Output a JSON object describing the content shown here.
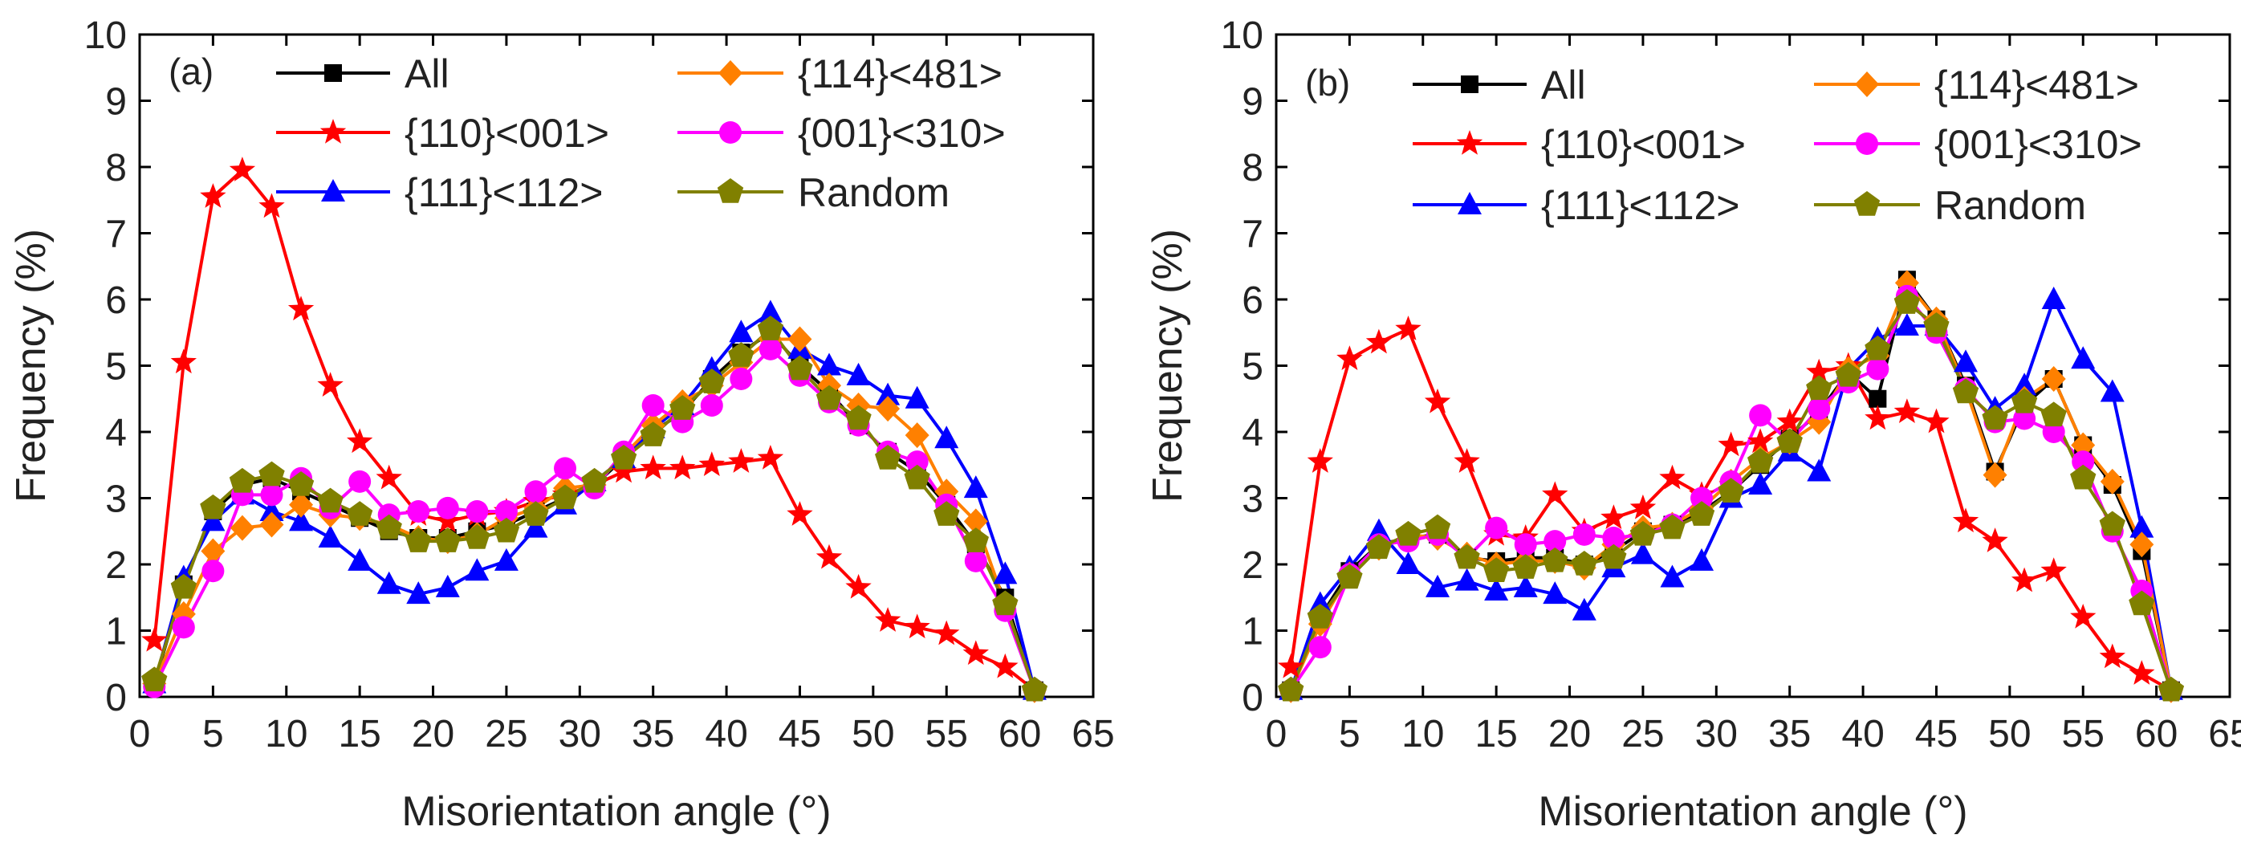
{
  "chart_data": [
    {
      "type": "line",
      "panel_label": "(a)",
      "xlabel": "Misorientation angle (°)",
      "ylabel": "Frequency (%)",
      "xlim": [
        0,
        65
      ],
      "ylim": [
        0,
        10
      ],
      "xticks": [
        0,
        5,
        10,
        15,
        20,
        25,
        30,
        35,
        40,
        45,
        50,
        55,
        60,
        65
      ],
      "yticks": [
        0,
        1,
        2,
        3,
        4,
        5,
        6,
        7,
        8,
        9,
        10
      ],
      "grid": false,
      "legend": "top, two columns",
      "x": [
        1,
        3,
        5,
        7,
        9,
        11,
        13,
        15,
        17,
        19,
        21,
        23,
        25,
        27,
        29,
        31,
        33,
        35,
        37,
        39,
        41,
        43,
        45,
        47,
        49,
        51,
        53,
        55,
        57,
        59,
        61
      ],
      "series": [
        {
          "name": "All",
          "color": "#000000",
          "marker": "square",
          "values": [
            0.2,
            1.7,
            2.8,
            3.2,
            3.3,
            3.1,
            2.9,
            2.7,
            2.5,
            2.4,
            2.4,
            2.5,
            2.6,
            2.8,
            3.0,
            3.2,
            3.6,
            4.0,
            4.3,
            4.8,
            5.2,
            5.5,
            5.0,
            4.6,
            4.1,
            3.7,
            3.4,
            2.9,
            2.3,
            1.5,
            0.1
          ]
        },
        {
          "name": "{110}<001>",
          "color": "#ff0000",
          "marker": "star",
          "values": [
            0.85,
            5.05,
            7.55,
            7.95,
            7.4,
            5.85,
            4.7,
            3.85,
            3.3,
            2.75,
            2.65,
            2.75,
            2.8,
            2.95,
            3.05,
            3.2,
            3.4,
            3.45,
            3.45,
            3.5,
            3.55,
            3.6,
            2.75,
            2.1,
            1.65,
            1.15,
            1.05,
            0.95,
            0.65,
            0.45,
            0.1
          ]
        },
        {
          "name": "{111}<112>",
          "color": "#0000ff",
          "marker": "triangle",
          "values": [
            0.2,
            1.8,
            2.65,
            3.05,
            2.8,
            2.65,
            2.4,
            2.05,
            1.7,
            1.55,
            1.65,
            1.9,
            2.05,
            2.55,
            2.9,
            3.25,
            3.6,
            4.05,
            4.4,
            4.95,
            5.5,
            5.8,
            5.25,
            5.0,
            4.85,
            4.55,
            4.5,
            3.9,
            3.15,
            1.85,
            0.1
          ]
        },
        {
          "name": "{114}<481>",
          "color": "#ff8000",
          "marker": "diamond",
          "values": [
            0.2,
            1.25,
            2.2,
            2.55,
            2.6,
            2.9,
            2.75,
            2.7,
            2.6,
            2.4,
            2.35,
            2.45,
            2.7,
            2.85,
            3.15,
            3.2,
            3.65,
            4.1,
            4.45,
            4.7,
            5.05,
            5.4,
            5.4,
            4.7,
            4.4,
            4.35,
            3.95,
            3.1,
            2.65,
            1.4,
            0.1
          ]
        },
        {
          "name": "{001}<310>",
          "color": "#ff00ff",
          "marker": "circle",
          "values": [
            0.15,
            1.05,
            1.9,
            3.05,
            3.05,
            3.3,
            2.85,
            3.25,
            2.75,
            2.8,
            2.85,
            2.8,
            2.8,
            3.1,
            3.45,
            3.15,
            3.7,
            4.4,
            4.15,
            4.4,
            4.8,
            5.25,
            4.85,
            4.45,
            4.1,
            3.7,
            3.55,
            2.9,
            2.05,
            1.3,
            0.1
          ]
        },
        {
          "name": "Random",
          "color": "#808000",
          "marker": "pentagon",
          "values": [
            0.25,
            1.65,
            2.85,
            3.25,
            3.35,
            3.2,
            2.95,
            2.75,
            2.55,
            2.35,
            2.35,
            2.4,
            2.5,
            2.75,
            3.0,
            3.25,
            3.6,
            3.95,
            4.35,
            4.75,
            5.15,
            5.55,
            4.95,
            4.5,
            4.2,
            3.6,
            3.3,
            2.75,
            2.35,
            1.4,
            0.1
          ]
        }
      ]
    },
    {
      "type": "line",
      "panel_label": "(b)",
      "xlabel": "Misorientation angle (°)",
      "ylabel": "Frequency (%)",
      "xlim": [
        0,
        65
      ],
      "ylim": [
        0,
        10
      ],
      "xticks": [
        0,
        5,
        10,
        15,
        20,
        25,
        30,
        35,
        40,
        45,
        50,
        55,
        60,
        65
      ],
      "yticks": [
        0,
        1,
        2,
        3,
        4,
        5,
        6,
        7,
        8,
        9,
        10
      ],
      "grid": false,
      "legend": "top, two columns",
      "x": [
        1,
        3,
        5,
        7,
        9,
        11,
        13,
        15,
        17,
        19,
        21,
        23,
        25,
        27,
        29,
        31,
        33,
        35,
        37,
        39,
        41,
        43,
        45,
        47,
        49,
        51,
        53,
        55,
        57,
        59,
        61
      ],
      "series": [
        {
          "name": "All",
          "color": "#000000",
          "marker": "square",
          "values": [
            0.1,
            1.2,
            1.9,
            2.3,
            2.4,
            2.45,
            2.1,
            2.05,
            2.1,
            2.1,
            2.0,
            2.2,
            2.5,
            2.6,
            2.8,
            3.1,
            3.5,
            3.9,
            4.3,
            4.9,
            4.5,
            6.3,
            5.7,
            4.7,
            3.4,
            4.4,
            4.8,
            3.8,
            3.2,
            2.2,
            0.1
          ]
        },
        {
          "name": "{110}<001>",
          "color": "#ff0000",
          "marker": "star",
          "values": [
            0.45,
            3.55,
            5.1,
            5.35,
            5.55,
            4.45,
            3.55,
            2.45,
            2.4,
            3.05,
            2.5,
            2.7,
            2.85,
            3.3,
            3.05,
            3.8,
            3.85,
            4.15,
            4.9,
            5.0,
            4.2,
            4.3,
            4.15,
            2.65,
            2.35,
            1.75,
            1.9,
            1.2,
            0.6,
            0.35,
            0.1
          ]
        },
        {
          "name": "{111}<112>",
          "color": "#0000ff",
          "marker": "triangle",
          "values": [
            0.1,
            1.4,
            1.95,
            2.5,
            2.0,
            1.65,
            1.75,
            1.6,
            1.65,
            1.55,
            1.3,
            1.95,
            2.15,
            1.8,
            2.05,
            3.0,
            3.2,
            3.7,
            3.4,
            4.95,
            5.4,
            5.6,
            5.6,
            5.05,
            4.35,
            4.7,
            6.0,
            5.1,
            4.6,
            2.55,
            0.1
          ]
        },
        {
          "name": "{114}<481>",
          "color": "#ff8000",
          "marker": "diamond",
          "values": [
            0.1,
            1.1,
            1.85,
            2.25,
            2.45,
            2.4,
            2.15,
            2.0,
            2.05,
            2.05,
            1.95,
            2.3,
            2.55,
            2.6,
            2.85,
            3.25,
            3.6,
            3.85,
            4.15,
            4.95,
            5.15,
            6.25,
            5.7,
            4.65,
            3.35,
            4.5,
            4.8,
            3.8,
            3.25,
            2.3,
            0.1
          ]
        },
        {
          "name": "{001}<310>",
          "color": "#ff00ff",
          "marker": "circle",
          "values": [
            0.1,
            0.75,
            1.85,
            2.3,
            2.35,
            2.45,
            2.1,
            2.55,
            2.3,
            2.35,
            2.45,
            2.4,
            2.45,
            2.6,
            3.0,
            3.25,
            4.25,
            3.85,
            4.35,
            4.75,
            4.95,
            6.05,
            5.5,
            4.65,
            4.15,
            4.2,
            4.0,
            3.55,
            2.5,
            1.6,
            0.1
          ]
        },
        {
          "name": "Random",
          "color": "#808000",
          "marker": "pentagon",
          "values": [
            0.1,
            1.2,
            1.8,
            2.25,
            2.45,
            2.55,
            2.1,
            1.9,
            1.95,
            2.05,
            2.0,
            2.1,
            2.45,
            2.55,
            2.75,
            3.1,
            3.55,
            3.85,
            4.65,
            4.85,
            5.25,
            5.95,
            5.6,
            4.6,
            4.2,
            4.45,
            4.25,
            3.3,
            2.6,
            1.4,
            0.1
          ]
        }
      ]
    }
  ]
}
